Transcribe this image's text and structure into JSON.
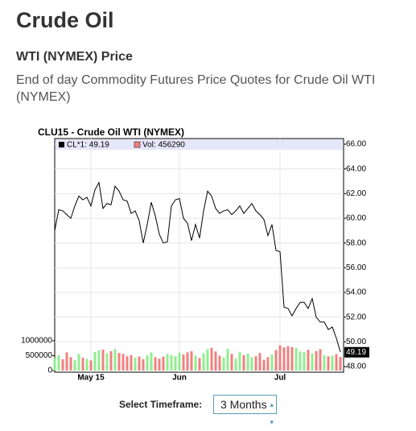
{
  "header": {
    "title": "Crude Oil",
    "subtitle": "WTI (NYMEX) Price",
    "description": "End of day Commodity Futures Price Quotes for Crude Oil WTI (NYMEX)"
  },
  "chart_data": {
    "type": "line",
    "title": "CLU15 - Crude Oil WTI (NYMEX)",
    "categories": [
      null,
      null,
      null,
      null,
      null,
      null,
      null,
      null,
      null,
      "May 15",
      null,
      null,
      null,
      null,
      null,
      null,
      null,
      null,
      null,
      null,
      null,
      null,
      null,
      null,
      null,
      null,
      null,
      null,
      null,
      null,
      null,
      "Jun",
      null,
      null,
      null,
      null,
      null,
      null,
      null,
      null,
      null,
      null,
      null,
      null,
      null,
      null,
      null,
      null,
      null,
      null,
      null,
      null,
      null,
      null,
      null,
      null,
      "Jul",
      null,
      null,
      null,
      null,
      null,
      null,
      null,
      null,
      null,
      null,
      null,
      null,
      null,
      null,
      null
    ],
    "series": [
      {
        "name": "CL*1: 49.19",
        "color": "#000000",
        "values": [
          59.0,
          60.7,
          60.6,
          60.3,
          60.0,
          61.0,
          61.8,
          61.5,
          61.7,
          61.0,
          62.3,
          62.9,
          60.8,
          61.2,
          61.1,
          62.6,
          62.2,
          61.5,
          61.4,
          60.4,
          60.6,
          59.8,
          58.0,
          59.5,
          61.3,
          60.2,
          58.7,
          58.0,
          58.1,
          61.0,
          61.5,
          61.6,
          60.0,
          59.6,
          58.2,
          59.5,
          58.4,
          60.6,
          62.2,
          61.8,
          60.8,
          60.4,
          60.6,
          60.7,
          60.3,
          60.6,
          61.0,
          60.4,
          60.8,
          61.2,
          60.6,
          60.3,
          59.9,
          58.6,
          59.5,
          57.4,
          57.3,
          52.8,
          52.7,
          52.1,
          52.7,
          53.2,
          53.2,
          52.7,
          53.5,
          52.0,
          51.6,
          51.6,
          51.0,
          51.2,
          50.3,
          49.19
        ]
      },
      {
        "name": "Vol: 456290",
        "type": "bar",
        "axis": "y2",
        "color": "#f08080",
        "up_color": "#90ee90",
        "down_color": "#f08080",
        "values": [
          420000,
          520000,
          380000,
          610000,
          450000,
          350000,
          560000,
          430000,
          390000,
          340000,
          620000,
          680000,
          700000,
          580000,
          650000,
          720000,
          590000,
          560000,
          480000,
          520000,
          430000,
          470000,
          380000,
          510000,
          610000,
          450000,
          400000,
          470000,
          560000,
          520000,
          480000,
          600000,
          540000,
          610000,
          650000,
          500000,
          420000,
          580000,
          720000,
          760000,
          640000,
          500000,
          440000,
          730000,
          560000,
          400000,
          620000,
          520000,
          570000,
          450000,
          480000,
          590000,
          360000,
          450000,
          540000,
          690000,
          850000,
          780000,
          820000,
          790000,
          760000,
          640000,
          620000,
          700000,
          580000,
          650000,
          720000,
          520000,
          480000,
          500000,
          550000,
          456290
        ]
      }
    ],
    "ylim": [
      48,
      66
    ],
    "yticks": [
      {
        "value": 48,
        "label": "48.00"
      },
      {
        "value": 50,
        "label": "50.00"
      },
      {
        "value": 52,
        "label": "52.00"
      },
      {
        "value": 54,
        "label": "54.00"
      },
      {
        "value": 56,
        "label": "56.00"
      },
      {
        "value": 58,
        "label": "58.00"
      },
      {
        "value": 60,
        "label": "60.00"
      },
      {
        "value": 62,
        "label": "62.00"
      },
      {
        "value": 64,
        "label": "64.00"
      },
      {
        "value": 66,
        "label": "66.00"
      }
    ],
    "y2lim": [
      0,
      1000000
    ],
    "y2ticks": [
      0,
      500000,
      1000000
    ],
    "grid": true,
    "legend": "top"
  },
  "controls": {
    "timeframe_label": "Select Timeframe:",
    "timeframe_value": "3 Months"
  }
}
